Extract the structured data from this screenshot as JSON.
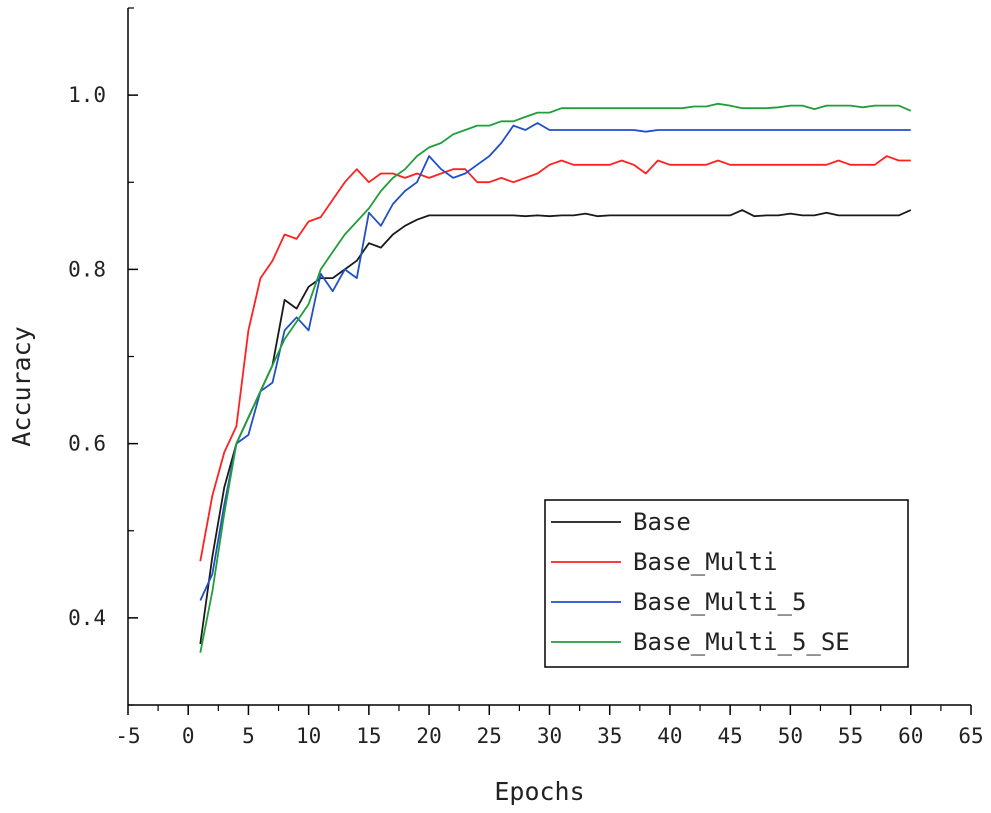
{
  "chart_data": {
    "type": "line",
    "title": "",
    "xlabel": "Epochs",
    "ylabel": "Accuracy",
    "xlim": [
      -5,
      65
    ],
    "ylim": [
      0.3,
      1.1
    ],
    "x_ticks": [
      "-5",
      "0",
      "5",
      "10",
      "15",
      "20",
      "25",
      "30",
      "35",
      "40",
      "45",
      "50",
      "55",
      "60",
      "65"
    ],
    "y_ticks": [
      "0.4",
      "0.6",
      "0.8",
      "1.0"
    ],
    "legend_position": "bottom-right",
    "grid": false,
    "x": [
      1,
      2,
      3,
      4,
      5,
      6,
      7,
      8,
      9,
      10,
      11,
      12,
      13,
      14,
      15,
      16,
      17,
      18,
      19,
      20,
      21,
      22,
      23,
      24,
      25,
      26,
      27,
      28,
      29,
      30,
      31,
      32,
      33,
      34,
      35,
      36,
      37,
      38,
      39,
      40,
      41,
      42,
      43,
      44,
      45,
      46,
      47,
      48,
      49,
      50,
      51,
      52,
      53,
      54,
      55,
      56,
      57,
      58,
      59,
      60
    ],
    "series": [
      {
        "name": "Base",
        "color": "#1a1a1a",
        "values": [
          0.37,
          0.47,
          0.55,
          0.6,
          0.63,
          0.66,
          0.69,
          0.765,
          0.755,
          0.78,
          0.79,
          0.79,
          0.8,
          0.81,
          0.83,
          0.825,
          0.84,
          0.85,
          0.857,
          0.862,
          0.862,
          0.862,
          0.862,
          0.862,
          0.862,
          0.862,
          0.862,
          0.861,
          0.862,
          0.861,
          0.862,
          0.862,
          0.864,
          0.861,
          0.862,
          0.862,
          0.862,
          0.862,
          0.862,
          0.862,
          0.862,
          0.862,
          0.862,
          0.862,
          0.862,
          0.868,
          0.861,
          0.862,
          0.862,
          0.864,
          0.862,
          0.862,
          0.865,
          0.862,
          0.862,
          0.862,
          0.862,
          0.862,
          0.862,
          0.868
        ]
      },
      {
        "name": "Base_Multi",
        "color": "#ff2020",
        "values": [
          0.465,
          0.54,
          0.59,
          0.62,
          0.73,
          0.79,
          0.81,
          0.84,
          0.835,
          0.855,
          0.86,
          0.88,
          0.9,
          0.915,
          0.9,
          0.91,
          0.91,
          0.905,
          0.91,
          0.905,
          0.91,
          0.915,
          0.915,
          0.9,
          0.9,
          0.905,
          0.9,
          0.905,
          0.91,
          0.92,
          0.925,
          0.92,
          0.92,
          0.92,
          0.92,
          0.925,
          0.92,
          0.91,
          0.925,
          0.92,
          0.92,
          0.92,
          0.92,
          0.925,
          0.92,
          0.92,
          0.92,
          0.92,
          0.92,
          0.92,
          0.92,
          0.92,
          0.92,
          0.925,
          0.92,
          0.92,
          0.92,
          0.93,
          0.925,
          0.925
        ]
      },
      {
        "name": "Base_Multi_5",
        "color": "#2050c8",
        "values": [
          0.42,
          0.45,
          0.53,
          0.6,
          0.61,
          0.66,
          0.67,
          0.73,
          0.745,
          0.73,
          0.795,
          0.775,
          0.8,
          0.79,
          0.865,
          0.85,
          0.875,
          0.89,
          0.9,
          0.93,
          0.915,
          0.905,
          0.91,
          0.92,
          0.93,
          0.945,
          0.965,
          0.96,
          0.968,
          0.96,
          0.96,
          0.96,
          0.96,
          0.96,
          0.96,
          0.96,
          0.96,
          0.958,
          0.96,
          0.96,
          0.96,
          0.96,
          0.96,
          0.96,
          0.96,
          0.96,
          0.96,
          0.96,
          0.96,
          0.96,
          0.96,
          0.96,
          0.96,
          0.96,
          0.96,
          0.96,
          0.96,
          0.96,
          0.96,
          0.96
        ]
      },
      {
        "name": "Base_Multi_5_SE",
        "color": "#1f9e3a",
        "values": [
          0.36,
          0.43,
          0.52,
          0.6,
          0.63,
          0.66,
          0.69,
          0.72,
          0.74,
          0.76,
          0.8,
          0.82,
          0.84,
          0.855,
          0.87,
          0.89,
          0.905,
          0.915,
          0.93,
          0.94,
          0.945,
          0.955,
          0.96,
          0.965,
          0.965,
          0.97,
          0.97,
          0.975,
          0.98,
          0.98,
          0.985,
          0.985,
          0.985,
          0.985,
          0.985,
          0.985,
          0.985,
          0.985,
          0.985,
          0.985,
          0.985,
          0.987,
          0.987,
          0.99,
          0.988,
          0.985,
          0.985,
          0.985,
          0.986,
          0.988,
          0.988,
          0.984,
          0.988,
          0.988,
          0.988,
          0.986,
          0.988,
          0.988,
          0.988,
          0.982
        ]
      }
    ]
  }
}
